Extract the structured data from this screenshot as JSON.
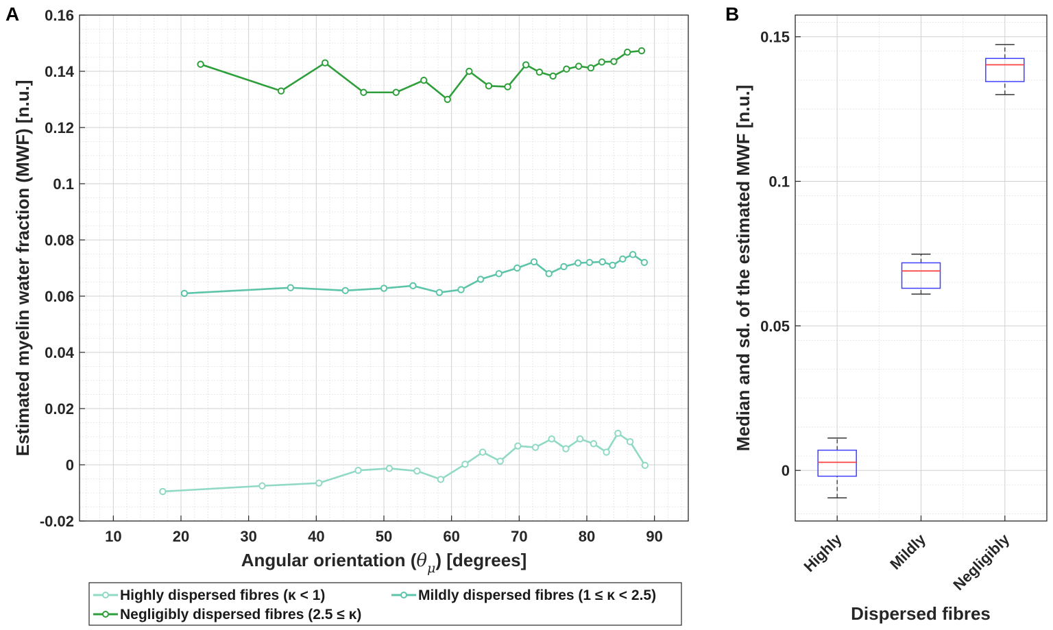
{
  "chart_data": [
    {
      "panel_label": "A",
      "type": "line",
      "xlabel": "Angular orientation",
      "xlabel_symbol": "θ",
      "xlabel_subscript": "μ",
      "xlabel_units": "[degrees]",
      "ylabel": "Estimated myelin water fraction (MWF) [n.u.]",
      "xlim": [
        5,
        95
      ],
      "ylim": [
        -0.02,
        0.16
      ],
      "xticks": [
        10,
        20,
        30,
        40,
        50,
        60,
        70,
        80,
        90
      ],
      "xtick_labels": [
        "10",
        "20",
        "30",
        "40",
        "50",
        "60",
        "70",
        "80",
        "90"
      ],
      "yticks": [
        -0.02,
        0,
        0.02,
        0.04,
        0.06,
        0.08,
        0.1,
        0.12,
        0.14,
        0.16
      ],
      "ytick_labels": [
        "-0.02",
        "0",
        "0.02",
        "0.04",
        "0.06",
        "0.08",
        "0.1",
        "0.12",
        "0.14",
        "0.16"
      ],
      "grid": true,
      "legend_position": "bottom",
      "series": [
        {
          "name": "Highly dispersed fibres (κ < 1)",
          "color": "#8fd9c5",
          "x": [
            17.3,
            32,
            40.4,
            46.2,
            50.8,
            54.9,
            58.4,
            62,
            64.6,
            67.2,
            69.8,
            72.4,
            74.8,
            76.9,
            79,
            81,
            82.9,
            84.6,
            86.4,
            88.6
          ],
          "y": [
            -0.0095,
            -0.0075,
            -0.0065,
            -0.002,
            -0.0013,
            -0.0022,
            -0.0052,
            0.0002,
            0.0045,
            0.0013,
            0.0067,
            0.0062,
            0.0092,
            0.0057,
            0.0092,
            0.0075,
            0.0045,
            0.0112,
            0.0082,
            -0.0002
          ]
        },
        {
          "name": "Mildly dispersed fibres (1 ≤ κ < 2.5)",
          "color": "#5cc4a8",
          "x": [
            20.5,
            36.2,
            44.3,
            50,
            54.3,
            58.2,
            61.4,
            64.3,
            67,
            69.7,
            72.2,
            74.4,
            76.6,
            78.7,
            80.4,
            82.3,
            83.8,
            85.3,
            86.8,
            88.5
          ],
          "y": [
            0.061,
            0.063,
            0.062,
            0.0628,
            0.0637,
            0.0613,
            0.0623,
            0.066,
            0.068,
            0.07,
            0.0722,
            0.068,
            0.0705,
            0.0718,
            0.072,
            0.0722,
            0.071,
            0.0732,
            0.0748,
            0.072
          ]
        },
        {
          "name": "Negligibly dispersed fibres (2.5 ≤ κ)",
          "color": "#2e9e3a",
          "x": [
            22.9,
            34.8,
            41.3,
            47,
            51.8,
            55.9,
            59.4,
            62.6,
            65.5,
            68.3,
            71,
            73,
            75,
            77,
            78.8,
            80.6,
            82.2,
            84,
            86,
            88.1
          ],
          "y": [
            0.1425,
            0.133,
            0.143,
            0.1325,
            0.1325,
            0.1368,
            0.13,
            0.14,
            0.1348,
            0.1345,
            0.1423,
            0.1397,
            0.1383,
            0.1408,
            0.1418,
            0.1412,
            0.1433,
            0.1435,
            0.1468,
            0.1473
          ]
        }
      ]
    },
    {
      "panel_label": "B",
      "type": "box",
      "xlabel": "Dispersed fibres",
      "ylabel": "Median and sd. of the estimated MWF [n.u.]",
      "categories": [
        "Highly",
        "Mildly",
        "Negligibly"
      ],
      "ylim": [
        -0.0175,
        0.1575
      ],
      "yticks": [
        0,
        0.05,
        0.1,
        0.15
      ],
      "ytick_labels": [
        "0",
        "0.05",
        "0.1",
        "0.15"
      ],
      "grid": true,
      "box_color": "#3f3fff",
      "median_color": "#ff3f3f",
      "whisker_color": "#333333",
      "boxes": [
        {
          "whisker_low": -0.0095,
          "q1": -0.002,
          "median": 0.0028,
          "q3": 0.007,
          "whisker_high": 0.0112
        },
        {
          "whisker_low": 0.061,
          "q1": 0.063,
          "median": 0.069,
          "q3": 0.0718,
          "whisker_high": 0.0748
        },
        {
          "whisker_low": 0.13,
          "q1": 0.1345,
          "median": 0.1403,
          "q3": 0.1425,
          "whisker_high": 0.1473
        }
      ]
    }
  ]
}
